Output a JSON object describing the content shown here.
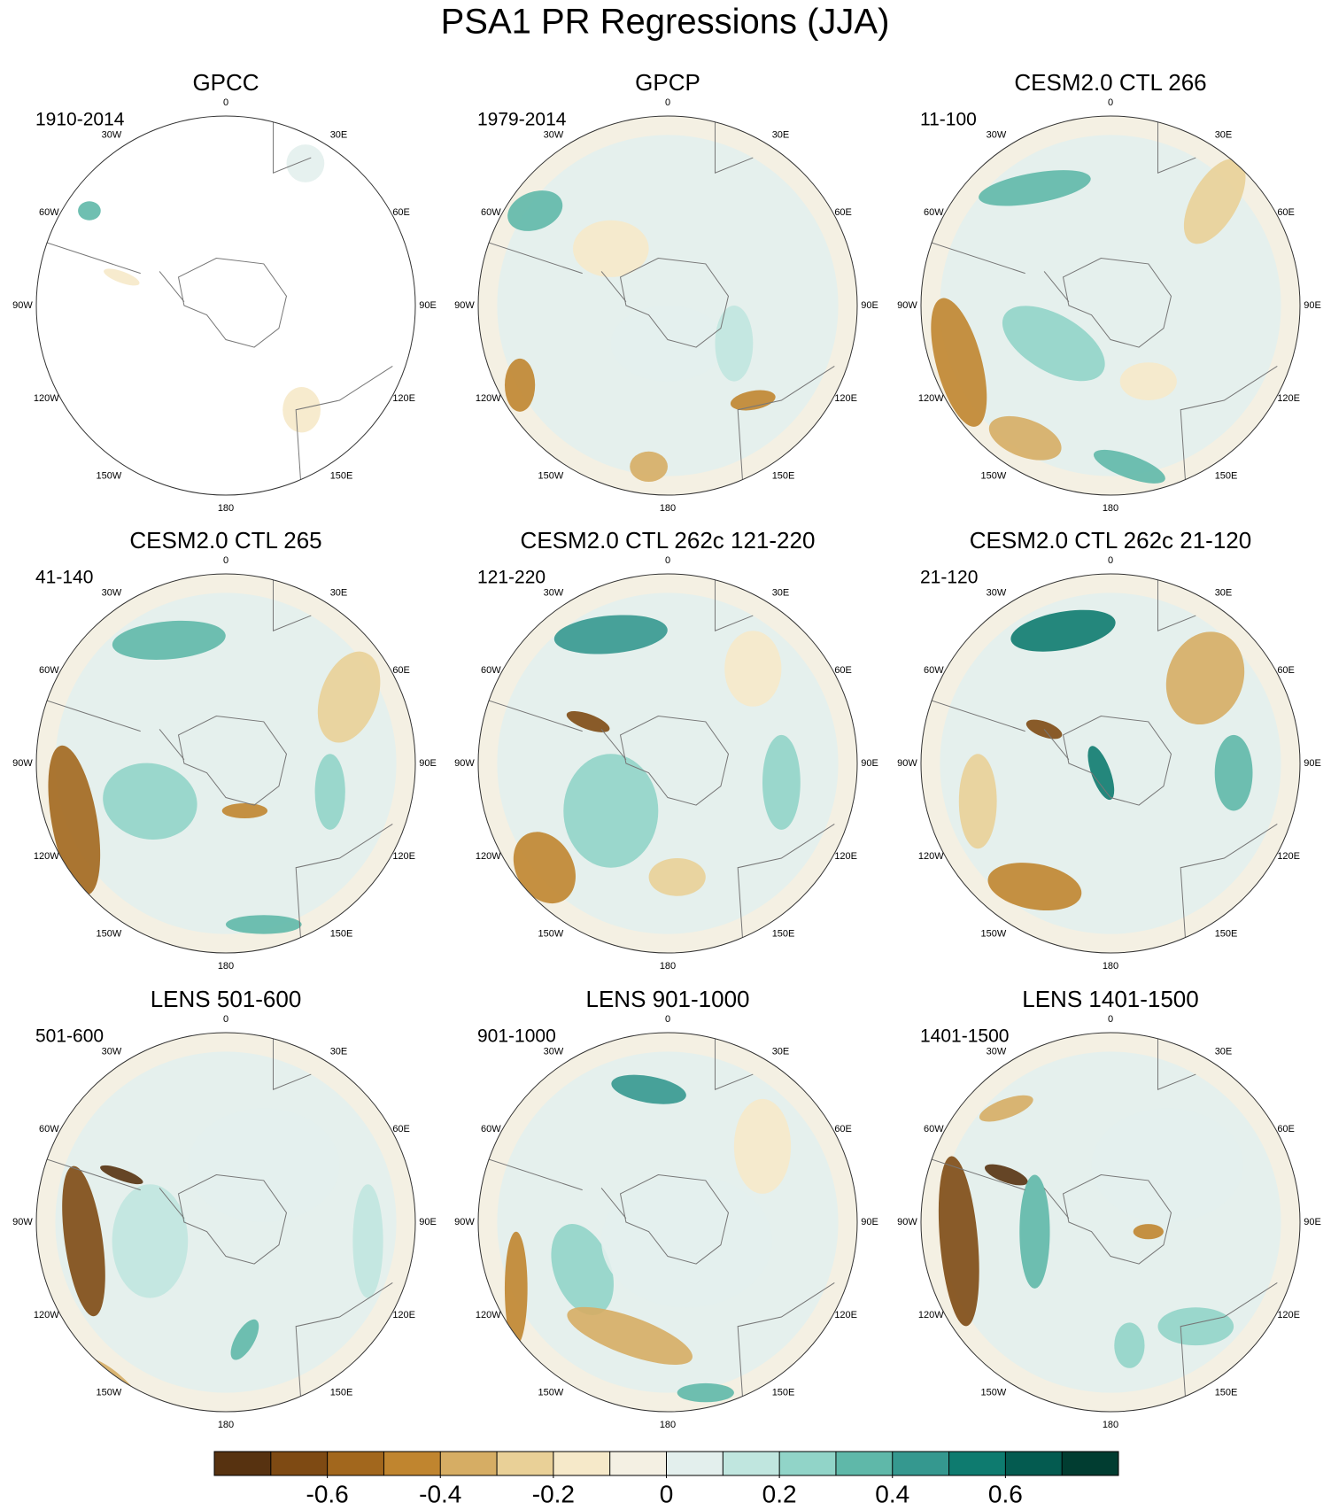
{
  "title": "PSA1 PR Regressions (JJA)",
  "panels": [
    {
      "title": "GPCC",
      "period": "1910-2014"
    },
    {
      "title": "GPCP",
      "period": "1979-2014"
    },
    {
      "title": "CESM2.0 CTL 266",
      "period": "11-100"
    },
    {
      "title": "CESM2.0 CTL 265",
      "period": "41-140"
    },
    {
      "title": "CESM2.0 CTL 262c 121-220",
      "period": "121-220"
    },
    {
      "title": "CESM2.0 CTL 262c 21-120",
      "period": "21-120"
    },
    {
      "title": "LENS 501-600",
      "period": "501-600"
    },
    {
      "title": "LENS 901-1000",
      "period": "901-1000"
    },
    {
      "title": "LENS 1401-1500",
      "period": "1401-1500"
    }
  ],
  "longitude_labels": [
    "0",
    "30E",
    "60E",
    "90E",
    "120E",
    "150E",
    "180",
    "150W",
    "120W",
    "90W",
    "60W",
    "30W"
  ],
  "colorbar": {
    "levels": [
      -0.7,
      -0.6,
      -0.5,
      -0.4,
      -0.3,
      -0.2,
      -0.1,
      0,
      0.1,
      0.2,
      0.3,
      0.4,
      0.5,
      0.6,
      0.7
    ],
    "colors": [
      "#573210",
      "#7e4a13",
      "#a2671d",
      "#c0852f",
      "#d6ad64",
      "#e9d097",
      "#f6e9c9",
      "#f4f0e3",
      "#e3efed",
      "#c0e6df",
      "#91d4c8",
      "#5fb8a9",
      "#35988f",
      "#0e7b6f",
      "#045b50",
      "#013d31"
    ],
    "ticks": [
      -0.6,
      -0.4,
      -0.2,
      0,
      0.2,
      0.4,
      0.6
    ]
  }
}
